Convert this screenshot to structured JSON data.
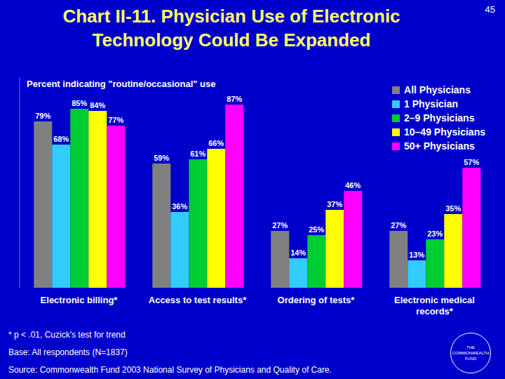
{
  "page_number": "45",
  "subtitle": "Percent indicating \"routine/occasional\" use",
  "footnotes": [
    "* p < .01, Cuzick's test for trend",
    "Base: All respondents (N=1837)",
    "Source: Commonwealth Fund 2003 National Survey of Physicians and Quality of Care."
  ],
  "logo": "THE COMMONWEALTH FUND",
  "chart_data": {
    "type": "bar",
    "title": "Chart II-11. Physician Use of Electronic Technology Could Be Expanded",
    "categories": [
      "Electronic billing*",
      "Access to test results*",
      "Ordering of tests*",
      "Electronic medical records*"
    ],
    "series": [
      {
        "name": "All Physicians",
        "color": "#808080",
        "values": [
          79,
          59,
          27,
          27
        ],
        "value_labels": [
          "79%",
          "59%",
          "27%",
          "27%"
        ]
      },
      {
        "name": "1 Physician",
        "color": "#33ccff",
        "values": [
          68,
          36,
          14,
          13
        ],
        "value_labels": [
          "68%",
          "36%",
          "14%",
          "13%"
        ]
      },
      {
        "name": "2–9 Physicians",
        "color": "#00cc33",
        "values": [
          85,
          61,
          25,
          23
        ],
        "value_labels": [
          "85%",
          "61%",
          "25%",
          "23%"
        ]
      },
      {
        "name": "10–49 Physicians",
        "color": "#ffff00",
        "values": [
          84,
          66,
          37,
          35
        ],
        "value_labels": [
          "84%",
          "66%",
          "37%",
          "35%"
        ]
      },
      {
        "name": "50+ Physicians",
        "color": "#ff00ff",
        "values": [
          77,
          87,
          46,
          57
        ],
        "value_labels": [
          "77%",
          "87%",
          "46%",
          "57%"
        ]
      }
    ],
    "ylim": [
      0,
      100
    ],
    "tick_labels": "x",
    "data_labels": true,
    "legend": "top-right",
    "grid": false
  }
}
